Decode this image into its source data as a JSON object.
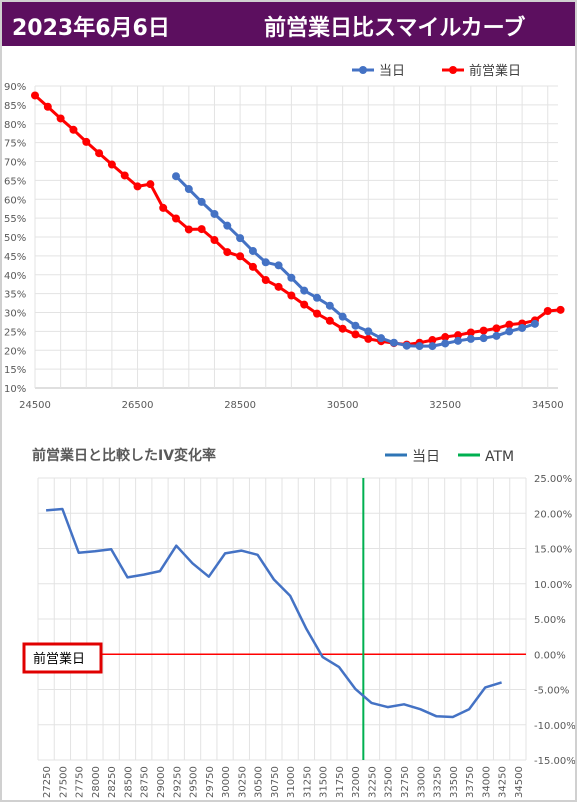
{
  "header": {
    "date": "2023年6月6日",
    "title": "前営業日比スマイルカーブ"
  },
  "colors": {
    "title_bg": "#5c0f5f",
    "today_top": "#4472c4",
    "prev_day": "#ff0000",
    "today_bottom": "#4472c4",
    "atm": "#00b050"
  },
  "chart_data": [
    {
      "type": "line",
      "title": "",
      "xlim": [
        24500,
        34700
      ],
      "ylim": [
        0.1,
        0.9
      ],
      "xticks": [
        "24500",
        "26500",
        "28500",
        "30500",
        "32500",
        "34500"
      ],
      "yticks": [
        "10%",
        "15%",
        "20%",
        "25%",
        "30%",
        "35%",
        "40%",
        "45%",
        "50%",
        "55%",
        "60%",
        "65%",
        "70%",
        "75%",
        "80%",
        "85%",
        "90%"
      ],
      "grid": true,
      "legend": "top-right",
      "series": [
        {
          "name": "当日",
          "color": "#4472c4",
          "x": [
            27250,
            27500,
            27750,
            28000,
            28250,
            28500,
            28750,
            29000,
            29250,
            29500,
            29750,
            30000,
            30250,
            30500,
            30750,
            31000,
            31250,
            31500,
            31750,
            32000,
            32250,
            32500,
            32750,
            33000,
            33250,
            33500,
            33750,
            34000,
            34250
          ],
          "y": [
            0.661,
            0.627,
            0.593,
            0.561,
            0.53,
            0.497,
            0.463,
            0.433,
            0.425,
            0.392,
            0.358,
            0.339,
            0.318,
            0.289,
            0.265,
            0.25,
            0.232,
            0.22,
            0.212,
            0.211,
            0.211,
            0.218,
            0.225,
            0.23,
            0.232,
            0.238,
            0.25,
            0.259,
            0.27
          ]
        },
        {
          "name": "前営業日",
          "color": "#ff0000",
          "x": [
            24500,
            24750,
            25000,
            25250,
            25500,
            25750,
            26000,
            26250,
            26500,
            26750,
            27000,
            27250,
            27500,
            27750,
            28000,
            28250,
            28500,
            28750,
            29000,
            29250,
            29500,
            29750,
            30000,
            30250,
            30500,
            30750,
            31000,
            31250,
            31500,
            31750,
            32000,
            32250,
            32500,
            32750,
            33000,
            33250,
            33500,
            33750,
            34000,
            34250,
            34500,
            34750
          ],
          "y": [
            0.875,
            0.845,
            0.814,
            0.784,
            0.752,
            0.722,
            0.692,
            0.663,
            0.634,
            0.64,
            0.577,
            0.549,
            0.52,
            0.521,
            0.492,
            0.46,
            0.449,
            0.421,
            0.386,
            0.368,
            0.345,
            0.321,
            0.297,
            0.278,
            0.257,
            0.242,
            0.23,
            0.224,
            0.219,
            0.215,
            0.22,
            0.227,
            0.235,
            0.24,
            0.247,
            0.252,
            0.258,
            0.268,
            0.271,
            0.279,
            0.304,
            0.307
          ]
        }
      ]
    },
    {
      "type": "line",
      "title": "前営業日と比較したIV変化率",
      "categories": [
        "27250",
        "27500",
        "27750",
        "28000",
        "28250",
        "28500",
        "28750",
        "29000",
        "29250",
        "29500",
        "29750",
        "30000",
        "30250",
        "30500",
        "30750",
        "31000",
        "31250",
        "31500",
        "31750",
        "32000",
        "32250",
        "32500",
        "32750",
        "33000",
        "33250",
        "33500",
        "33750",
        "34000",
        "34250",
        "34500"
      ],
      "ylim": [
        -0.15,
        0.25
      ],
      "yticks": [
        "25.00%",
        "20.00%",
        "15.00%",
        "10.00%",
        "5.00%",
        "0.00%",
        "-5.00%",
        "-10.00%",
        "-15.00%"
      ],
      "grid": true,
      "legend": "top-right",
      "annotation": "前営業日",
      "atm_category": "32125",
      "series": [
        {
          "name": "当日",
          "color": "#4472c4",
          "values": [
            0.204,
            0.206,
            0.144,
            0.146,
            0.149,
            0.109,
            0.113,
            0.118,
            0.154,
            0.129,
            0.11,
            0.143,
            0.147,
            0.141,
            0.106,
            0.083,
            0.036,
            -0.004,
            -0.018,
            -0.049,
            -0.069,
            -0.075,
            -0.071,
            -0.078,
            -0.088,
            -0.089,
            -0.078,
            -0.047,
            -0.04,
            null
          ]
        },
        {
          "name": "ATM",
          "color": "#00b050"
        }
      ]
    }
  ]
}
